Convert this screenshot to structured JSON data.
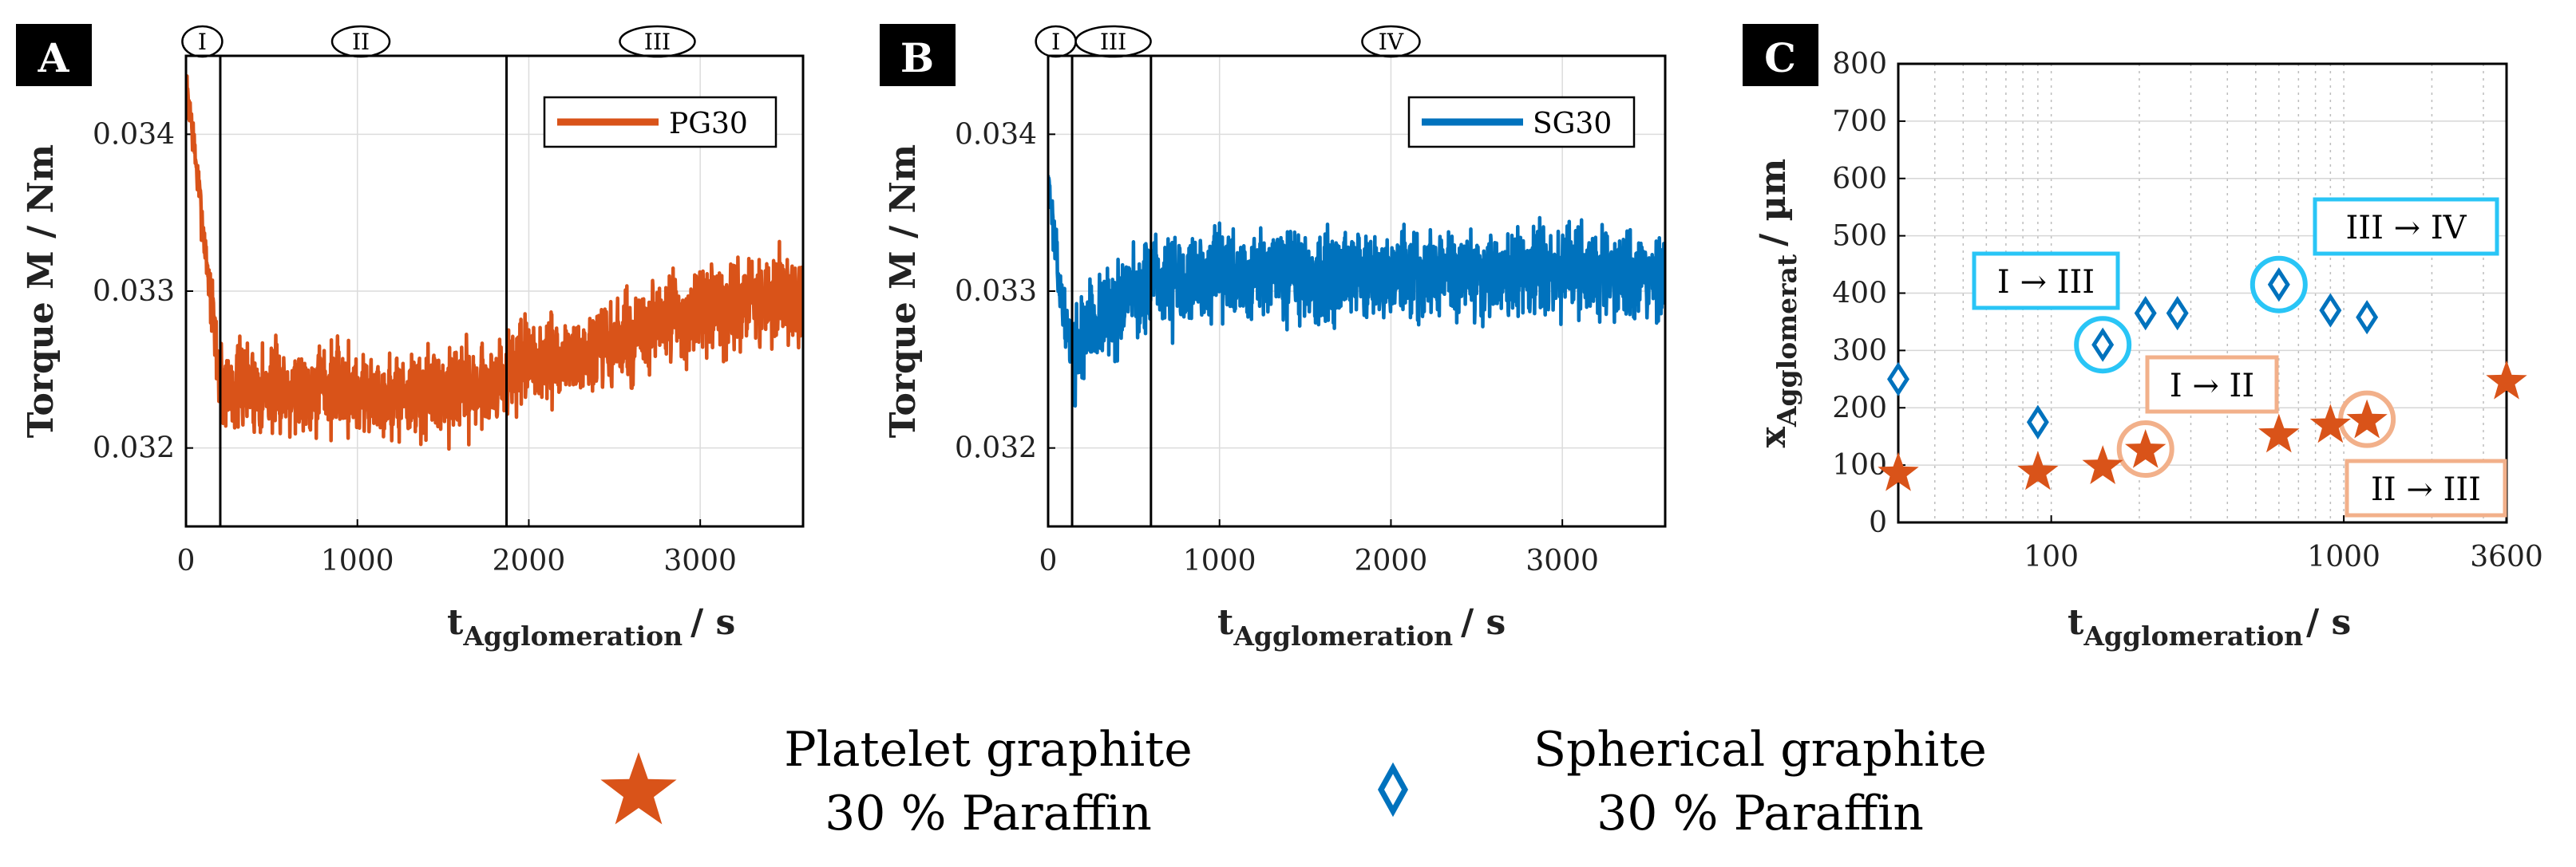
{
  "colors": {
    "platelet": "#d95319",
    "spherical": "#0072bd",
    "cyan_box": "#29c5f6",
    "orange_box": "#f2b08a",
    "grid": "#dcdcdc",
    "axis": "#000000",
    "panel_label_bg": "#000000",
    "panel_label_fg": "#ffffff"
  },
  "chart_data": [
    {
      "type": "line",
      "panel": "A",
      "ylabel": "Torque M / Nm",
      "xlabel_main": "t",
      "xlabel_sub": "Agglomeration",
      "xlabel_unit": "/ s",
      "xlim": [
        0,
        3600
      ],
      "ylim": [
        0.0315,
        0.0345
      ],
      "xticks": [
        0,
        1000,
        2000,
        3000
      ],
      "xtick_labels": [
        "0",
        "1000",
        "2000",
        "3000"
      ],
      "yticks": [
        0.032,
        0.033,
        0.034
      ],
      "ytick_labels": [
        "0.032",
        "0.033",
        "0.034"
      ],
      "legend": "PG30",
      "phase_lines_x": [
        200,
        1870
      ],
      "phase_markers": [
        {
          "label": "I",
          "x": 95
        },
        {
          "label": "II",
          "x": 1020
        },
        {
          "label": "III",
          "x": 2750
        }
      ],
      "series": [
        {
          "name": "PG30",
          "noise": 0.00022,
          "envelope": [
            [
              0,
              0.03425
            ],
            [
              20,
              0.0342
            ],
            [
              60,
              0.0338
            ],
            [
              110,
              0.0333
            ],
            [
              170,
              0.0327
            ],
            [
              200,
              0.0324
            ],
            [
              400,
              0.03238
            ],
            [
              800,
              0.0324
            ],
            [
              1200,
              0.03232
            ],
            [
              1600,
              0.03238
            ],
            [
              1850,
              0.03242
            ],
            [
              1900,
              0.0325
            ],
            [
              2400,
              0.0326
            ],
            [
              2800,
              0.0328
            ],
            [
              3200,
              0.0329
            ],
            [
              3600,
              0.033
            ]
          ]
        }
      ]
    },
    {
      "type": "line",
      "panel": "B",
      "ylabel": "Torque M / Nm",
      "xlabel_main": "t",
      "xlabel_sub": "Agglomeration",
      "xlabel_unit": "/ s",
      "xlim": [
        0,
        3600
      ],
      "ylim": [
        0.0315,
        0.0345
      ],
      "xticks": [
        0,
        1000,
        2000,
        3000
      ],
      "xtick_labels": [
        "0",
        "1000",
        "2000",
        "3000"
      ],
      "yticks": [
        0.032,
        0.033,
        0.034
      ],
      "ytick_labels": [
        "0.032",
        "0.033",
        "0.034"
      ],
      "legend": "SG30",
      "phase_lines_x": [
        140,
        600
      ],
      "phase_markers": [
        {
          "label": "I",
          "x": 45
        },
        {
          "label": "III",
          "x": 380
        },
        {
          "label": "IV",
          "x": 2000
        }
      ],
      "series": [
        {
          "name": "SG30",
          "noise": 0.00022,
          "envelope": [
            [
              0,
              0.03375
            ],
            [
              30,
              0.0334
            ],
            [
              70,
              0.033
            ],
            [
              120,
              0.0327
            ],
            [
              160,
              0.0326
            ],
            [
              250,
              0.0328
            ],
            [
              400,
              0.0329
            ],
            [
              600,
              0.03305
            ],
            [
              1000,
              0.0331
            ],
            [
              1500,
              0.0331
            ],
            [
              2000,
              0.03312
            ],
            [
              2500,
              0.0331
            ],
            [
              3000,
              0.03312
            ],
            [
              3600,
              0.0331
            ]
          ]
        }
      ]
    },
    {
      "type": "scatter",
      "panel": "C",
      "xscale": "log",
      "ylabel_main": "x",
      "ylabel_sub": "Agglomerat",
      "ylabel_unit": "/ µm",
      "xlabel_main": "t",
      "xlabel_sub": "Agglomeration",
      "xlabel_unit": "/ s",
      "xlim": [
        30,
        3600
      ],
      "ylim": [
        0,
        800
      ],
      "xticks": [
        100,
        1000,
        3600
      ],
      "xtick_labels": [
        "100",
        "1000",
        "3600"
      ],
      "yticks": [
        0,
        100,
        200,
        300,
        400,
        500,
        600,
        700,
        800
      ],
      "ytick_labels": [
        "0",
        "100",
        "200",
        "300",
        "400",
        "500",
        "600",
        "700",
        "800"
      ],
      "series": [
        {
          "name": "Platelet graphite 30 % Paraffin",
          "marker": "star",
          "x": [
            30,
            90,
            150,
            210,
            600,
            900,
            1200,
            3600
          ],
          "y": [
            88,
            90,
            100,
            128,
            155,
            172,
            180,
            248
          ]
        },
        {
          "name": "Spherical graphite 30 % Paraffin",
          "marker": "diamond",
          "x": [
            30,
            90,
            150,
            210,
            270,
            600,
            900,
            1200
          ],
          "y": [
            250,
            175,
            310,
            365,
            365,
            415,
            370,
            358
          ]
        }
      ],
      "highlights": [
        {
          "series": "spherical",
          "x": 150,
          "y": 310,
          "color": "cyan"
        },
        {
          "series": "spherical",
          "x": 600,
          "y": 415,
          "color": "cyan"
        },
        {
          "series": "platelet",
          "x": 210,
          "y": 128,
          "color": "orange"
        },
        {
          "series": "platelet",
          "x": 1200,
          "y": 180,
          "color": "orange"
        }
      ],
      "annotations": [
        {
          "text": "I → III",
          "color": "cyan"
        },
        {
          "text": "III → IV",
          "color": "cyan"
        },
        {
          "text": "I → II",
          "color": "orange"
        },
        {
          "text": "II → III",
          "color": "orange"
        }
      ]
    }
  ],
  "panel_labels": [
    "A",
    "B",
    "C"
  ],
  "legend": {
    "platelet_line1": "Platelet graphite",
    "platelet_line2": "30 % Paraffin",
    "spherical_line1": "Spherical graphite",
    "spherical_line2": "30 % Paraffin"
  }
}
